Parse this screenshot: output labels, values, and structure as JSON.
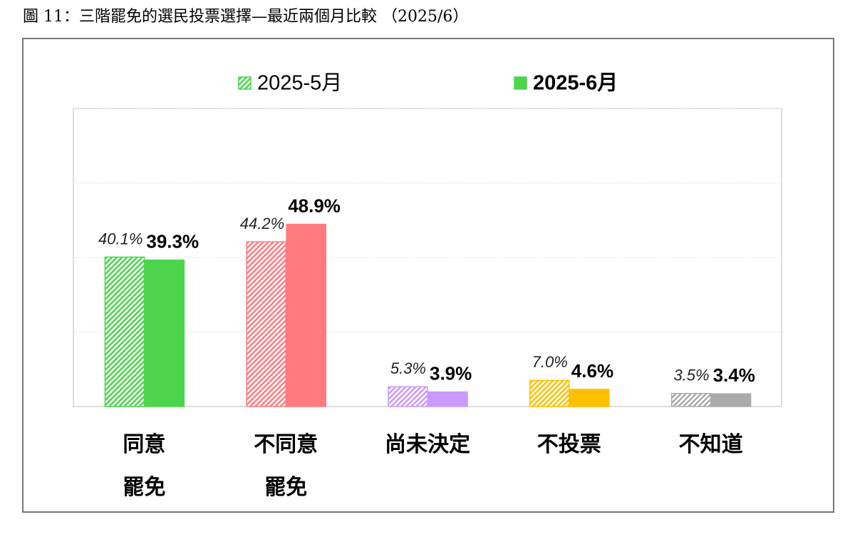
{
  "chart_data": {
    "type": "bar",
    "title": "圖 11：三階罷免的選民投票選擇—最近兩個月比較 （2025/6）",
    "categories": [
      [
        "同意",
        "罷免"
      ],
      [
        "不同意",
        "罷免"
      ],
      [
        "尚未決定"
      ],
      [
        "不投票"
      ],
      [
        "不知道"
      ]
    ],
    "colors": [
      "#4cd44c",
      "#ff7b7f",
      "#cc99ff",
      "#ffc000",
      "#aaaaaa"
    ],
    "series": [
      {
        "name": "2025-5月",
        "color": "#4cd44c",
        "pattern": "hatch",
        "values": [
          40.1,
          44.2,
          5.3,
          7.0,
          3.5
        ],
        "value_labels": [
          "40.1%",
          "44.2%",
          "5.3%",
          "7.0%",
          "3.5%"
        ]
      },
      {
        "name": "2025-6月",
        "color": "#4cd44c",
        "pattern": "solid",
        "values": [
          39.3,
          48.9,
          3.9,
          4.6,
          3.4
        ],
        "value_labels": [
          "39.3%",
          "48.9%",
          "3.9%",
          "4.6%",
          "3.4%"
        ]
      }
    ],
    "ylim": [
      0,
      80
    ],
    "yticks": [
      0,
      20,
      40,
      60,
      80
    ],
    "grid": true
  }
}
